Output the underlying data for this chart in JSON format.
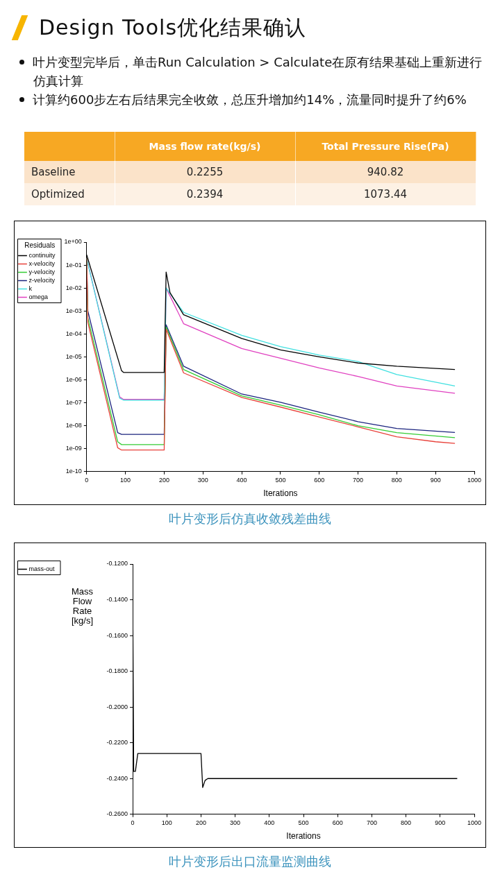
{
  "chart_data": [
    {
      "type": "other",
      "title": "Design Tools优化结果确认",
      "annotations": [
        "叶片变型完毕后，单击Run Calculation > Calculate在原有结果基础上重新进行仿真计算",
        "计算约600步左右后结果完全收敛，总压升增加约14%，流量同时提升了约6%"
      ],
      "categories": [
        "Baseline",
        "Optimized"
      ],
      "series": [
        {
          "name": "Mass flow rate(kg/s)",
          "colors": [
            "#fbe3c9",
            "#fdf1e4"
          ],
          "values": [
            0.2255,
            0.2394
          ]
        },
        {
          "name": "Total Pressure Rise(Pa)",
          "colors": [
            "#fbe3c9",
            "#fdf1e4"
          ],
          "values": [
            940.82,
            1073.44
          ]
        }
      ],
      "data_labels": true
    },
    {
      "type": "line",
      "xlabel": "Iterations",
      "legend_title": "Residuals",
      "legend": "top left",
      "log": true,
      "annotations": [
        "叶片变形后仿真收敛残差曲线"
      ],
      "xlim": [
        0,
        1000
      ],
      "xticks": [
        0,
        100,
        200,
        300,
        400,
        500,
        600,
        700,
        800,
        900,
        1000
      ],
      "ylim": [
        1e-10,
        1
      ],
      "yticks": [
        {
          "value": 1e-10,
          "label": "1e-10"
        },
        {
          "value": 1e-09,
          "label": "1e-09"
        },
        {
          "value": 1e-08,
          "label": "1e-08"
        },
        {
          "value": 1e-07,
          "label": "1e-07"
        },
        {
          "value": 1e-06,
          "label": "1e-06"
        },
        {
          "value": 1e-05,
          "label": "1e-05"
        },
        {
          "value": 0.0001,
          "label": "1e-04"
        },
        {
          "value": 0.001,
          "label": "1e-03"
        },
        {
          "value": 0.01,
          "label": "1e-02"
        },
        {
          "value": 0.1,
          "label": "1e-01"
        },
        {
          "value": 1,
          "label": "1e+00"
        }
      ],
      "series": [
        {
          "name": "continuity",
          "color": "#000000",
          "x": [
            0,
            90,
            95,
            200,
            205,
            215,
            250,
            400,
            500,
            600,
            700,
            800,
            950
          ],
          "values": [
            0.28,
            2.5e-06,
            2.1e-06,
            2.1e-06,
            0.05,
            0.0063,
            0.00069,
            6.3e-05,
            2e-05,
            1e-05,
            5.4e-06,
            3.9e-06,
            2.8e-06
          ]
        },
        {
          "name": "x-velocity",
          "color": "#e8413a",
          "x": [
            0,
            3,
            80,
            90,
            200,
            205,
            250,
            400,
            500,
            600,
            700,
            800,
            900,
            950
          ],
          "values": [
            0.2,
            0.00032,
            1.1e-09,
            8.7e-10,
            8.7e-10,
            0.00016,
            2e-06,
            1.7e-07,
            6.5e-08,
            2.4e-08,
            8.9e-09,
            3.3e-09,
            2e-09,
            1.7e-09
          ]
        },
        {
          "name": "y-velocity",
          "color": "#33cc33",
          "x": [
            0,
            3,
            80,
            90,
            200,
            205,
            250,
            400,
            500,
            600,
            700,
            800,
            950
          ],
          "values": [
            0.2,
            0.0005,
            2e-09,
            1.5e-09,
            1.5e-09,
            0.0002,
            2.8e-06,
            2e-07,
            8e-08,
            3e-08,
            1e-08,
            5e-09,
            3e-09
          ]
        },
        {
          "name": "z-velocity",
          "color": "#1a237e",
          "x": [
            0,
            3,
            80,
            90,
            200,
            205,
            250,
            400,
            500,
            600,
            700,
            800,
            950
          ],
          "values": [
            0.2,
            0.001,
            5e-09,
            4.2e-09,
            4.2e-09,
            0.00025,
            3.9e-06,
            2.4e-07,
            1.05e-07,
            3.9e-08,
            1.5e-08,
            7.6e-09,
            5.1e-09
          ]
        },
        {
          "name": "k",
          "color": "#40e0e0",
          "x": [
            0,
            85,
            95,
            200,
            205,
            250,
            400,
            500,
            600,
            700,
            800,
            950
          ],
          "values": [
            0.2,
            1.6e-07,
            1.3e-07,
            1.3e-07,
            0.01,
            0.00087,
            8.7e-05,
            2.8e-05,
            1.2e-05,
            6.3e-06,
            1.7e-06,
            5.4e-07
          ]
        },
        {
          "name": "omega",
          "color": "#e040c0",
          "x": [
            0,
            85,
            95,
            200,
            205,
            250,
            400,
            500,
            600,
            700,
            800,
            950
          ],
          "values": [
            0.2,
            1.8e-07,
            1.4e-07,
            1.4e-07,
            0.01,
            0.00028,
            2.3e-05,
            8.7e-06,
            3.3e-06,
            1.4e-06,
            5.4e-07,
            2.6e-07
          ]
        }
      ]
    },
    {
      "type": "line",
      "xlabel": "Iterations",
      "ylabel": "Mass Flow Rate [kg/s]",
      "legend": "top left",
      "annotations": [
        "叶片变形后出口流量监测曲线"
      ],
      "xlim": [
        0,
        1000
      ],
      "xticks": [
        0,
        100,
        200,
        300,
        400,
        500,
        600,
        700,
        800,
        900,
        1000
      ],
      "ylim": [
        -0.26,
        -0.12
      ],
      "yticks": [
        {
          "value": -0.26,
          "label": "-0.2600"
        },
        {
          "value": -0.24,
          "label": "-0.2400"
        },
        {
          "value": -0.22,
          "label": "-0.2200"
        },
        {
          "value": -0.2,
          "label": "-0.2000"
        },
        {
          "value": -0.18,
          "label": "-0.1800"
        },
        {
          "value": -0.16,
          "label": "-0.1600"
        },
        {
          "value": -0.14,
          "label": "-0.1400"
        },
        {
          "value": -0.12,
          "label": "-0.1200"
        }
      ],
      "series": [
        {
          "name": "mass-out",
          "color": "#000000",
          "x": [
            0,
            3,
            8,
            15,
            200,
            205,
            212,
            220,
            950
          ],
          "values": [
            -0.132,
            -0.236,
            -0.236,
            -0.226,
            -0.226,
            -0.245,
            -0.241,
            -0.24,
            -0.24
          ]
        }
      ]
    }
  ]
}
